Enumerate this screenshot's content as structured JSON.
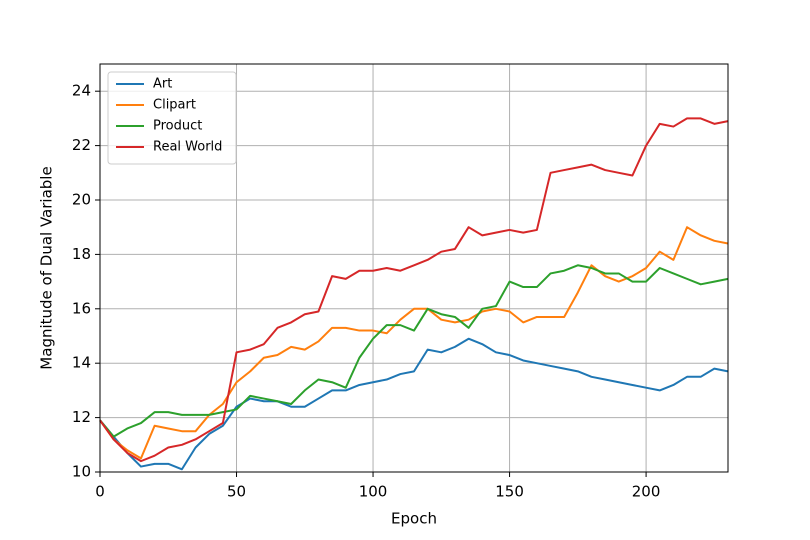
{
  "chart_data": {
    "type": "line",
    "xlabel": "Epoch",
    "ylabel": "Magnitude of Dual Variable",
    "x": [
      0,
      5,
      10,
      15,
      20,
      25,
      30,
      35,
      40,
      45,
      50,
      55,
      60,
      65,
      70,
      75,
      80,
      85,
      90,
      95,
      100,
      105,
      110,
      115,
      120,
      125,
      130,
      135,
      140,
      145,
      150,
      155,
      160,
      165,
      170,
      175,
      180,
      185,
      190,
      195,
      200,
      205,
      210,
      215,
      220,
      225,
      230
    ],
    "series": [
      {
        "name": "Art",
        "color": "#1f77b4",
        "values": [
          11.9,
          11.3,
          10.7,
          10.2,
          10.3,
          10.3,
          10.1,
          10.9,
          11.4,
          11.7,
          12.4,
          12.7,
          12.6,
          12.6,
          12.4,
          12.4,
          12.7,
          13.0,
          13.0,
          13.2,
          13.3,
          13.4,
          13.6,
          13.7,
          14.5,
          14.4,
          14.6,
          14.9,
          14.7,
          14.4,
          14.3,
          14.1,
          14.0,
          13.9,
          13.8,
          13.7,
          13.5,
          13.4,
          13.3,
          13.2,
          13.1,
          13.0,
          13.2,
          13.5,
          13.5,
          13.8,
          13.7
        ]
      },
      {
        "name": "Clipart",
        "color": "#ff7f0e",
        "values": [
          11.9,
          11.2,
          10.8,
          10.5,
          11.7,
          11.6,
          11.5,
          11.5,
          12.1,
          12.5,
          13.3,
          13.7,
          14.2,
          14.3,
          14.6,
          14.5,
          14.8,
          15.3,
          15.3,
          15.2,
          15.2,
          15.1,
          15.6,
          16.0,
          16.0,
          15.6,
          15.5,
          15.6,
          15.9,
          16.0,
          15.9,
          15.5,
          15.7,
          15.7,
          15.7,
          16.6,
          17.6,
          17.2,
          17.0,
          17.2,
          17.5,
          18.1,
          17.8,
          19.0,
          18.7,
          18.5,
          18.4
        ]
      },
      {
        "name": "Product",
        "color": "#2ca02c",
        "values": [
          11.9,
          11.3,
          11.6,
          11.8,
          12.2,
          12.2,
          12.1,
          12.1,
          12.1,
          12.2,
          12.3,
          12.8,
          12.7,
          12.6,
          12.5,
          13.0,
          13.4,
          13.3,
          13.1,
          14.2,
          14.9,
          15.4,
          15.4,
          15.2,
          16.0,
          15.8,
          15.7,
          15.3,
          16.0,
          16.1,
          17.0,
          16.8,
          16.8,
          17.3,
          17.4,
          17.6,
          17.5,
          17.3,
          17.3,
          17.0,
          17.0,
          17.5,
          17.3,
          17.1,
          16.9,
          17.0,
          17.1
        ]
      },
      {
        "name": "Real World",
        "color": "#d62728",
        "values": [
          11.9,
          11.2,
          10.7,
          10.4,
          10.6,
          10.9,
          11.0,
          11.2,
          11.5,
          11.8,
          14.4,
          14.5,
          14.7,
          15.3,
          15.5,
          15.8,
          15.9,
          17.2,
          17.1,
          17.4,
          17.4,
          17.5,
          17.4,
          17.6,
          17.8,
          18.1,
          18.2,
          19.0,
          18.7,
          18.8,
          18.9,
          18.8,
          18.9,
          21.0,
          21.1,
          21.2,
          21.3,
          21.1,
          21.0,
          20.9,
          22.0,
          22.8,
          22.7,
          23.0,
          23.0,
          22.8,
          22.9
        ]
      }
    ],
    "xlim": [
      0,
      230
    ],
    "ylim": [
      10,
      25
    ],
    "xticks": [
      0,
      50,
      100,
      150,
      200
    ],
    "yticks": [
      10,
      12,
      14,
      16,
      18,
      20,
      22,
      24
    ],
    "grid": true,
    "legend": "upper left"
  }
}
